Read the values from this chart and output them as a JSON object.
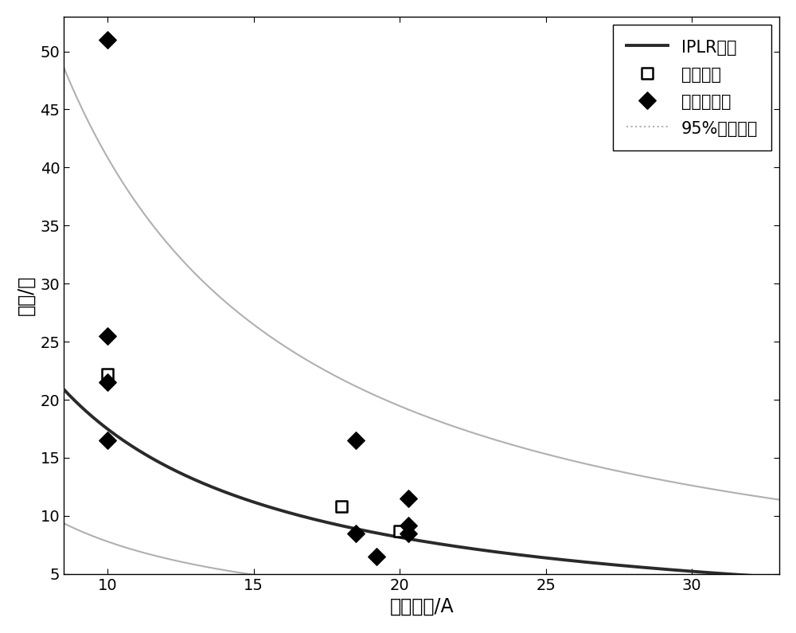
{
  "title": "",
  "xlabel": "放电电流/A",
  "ylabel": "寿命/年",
  "xlim": [
    8.5,
    33
  ],
  "ylim": [
    5,
    52
  ],
  "xticks": [
    10,
    15,
    20,
    25,
    30
  ],
  "yticks": [
    5,
    10,
    15,
    20,
    25,
    30,
    35,
    40,
    45,
    50
  ],
  "model_color": "#2a2a2a",
  "ci_color": "#b0b0b0",
  "model_a": 220.0,
  "model_b": -1.1,
  "ci_upper_a": 480.0,
  "ci_upper_b": -1.07,
  "ci_lower_a": 105.0,
  "ci_lower_b": -1.13,
  "avg_life_points": [
    [
      10,
      22.2
    ],
    [
      18,
      10.8
    ],
    [
      20,
      8.7
    ]
  ],
  "real_life_points": [
    [
      10,
      51.0
    ],
    [
      10,
      25.5
    ],
    [
      10,
      21.5
    ],
    [
      10,
      16.5
    ],
    [
      18.5,
      16.5
    ],
    [
      18.5,
      8.5
    ],
    [
      19.2,
      6.5
    ],
    [
      20.3,
      11.5
    ],
    [
      20.3,
      9.2
    ],
    [
      20.3,
      8.5
    ]
  ],
  "legend_labels": [
    "IPLR模型",
    "平均寿命",
    "真实寿命点",
    "95%置信区间"
  ],
  "model_linewidth": 2.8,
  "ci_linewidth": 1.5,
  "marker_size_sq": 100,
  "marker_size_d": 120,
  "font_size": 15,
  "label_font_size": 17,
  "tick_font_size": 14
}
